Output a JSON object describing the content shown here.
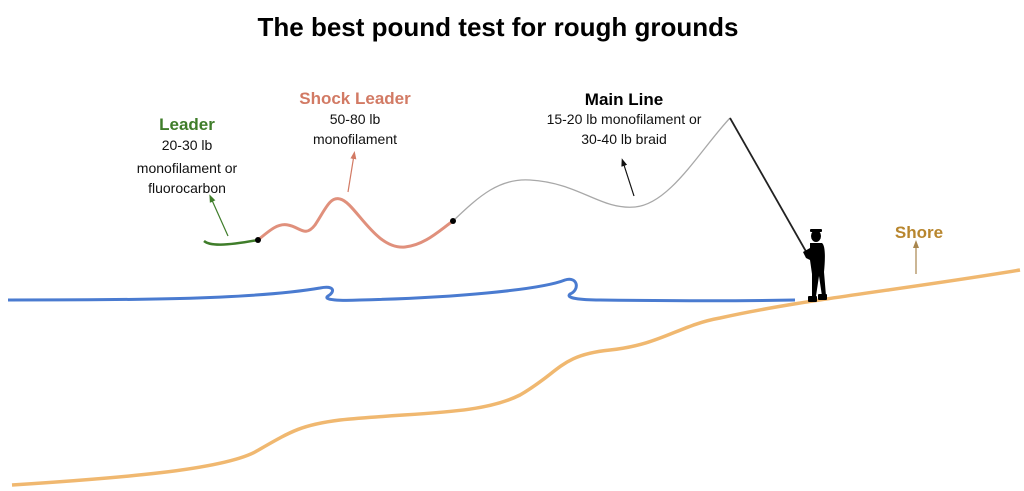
{
  "title": "The best pound test for rough grounds",
  "labels": {
    "leader": {
      "name": "Leader",
      "lines": [
        "20-30 lb",
        "monofilament or",
        "fluorocarbon"
      ],
      "color": "#3f7d2a"
    },
    "shock_leader": {
      "name": "Shock Leader",
      "lines": [
        "50-80 lb",
        "monofilament"
      ],
      "color": "#d27a64"
    },
    "main_line": {
      "name": "Main Line",
      "lines": [
        "15-20 lb monofilament or",
        "30-40 lb braid"
      ],
      "color": "#000000"
    },
    "shore": {
      "name": "Shore",
      "color": "#b8862e"
    }
  },
  "colors": {
    "water": "#4a7bd0",
    "shore_line": "#f0b870",
    "leader_line": "#3f7d2a",
    "shock_line": "#e0907c",
    "main_line": "#a8a8a8"
  }
}
